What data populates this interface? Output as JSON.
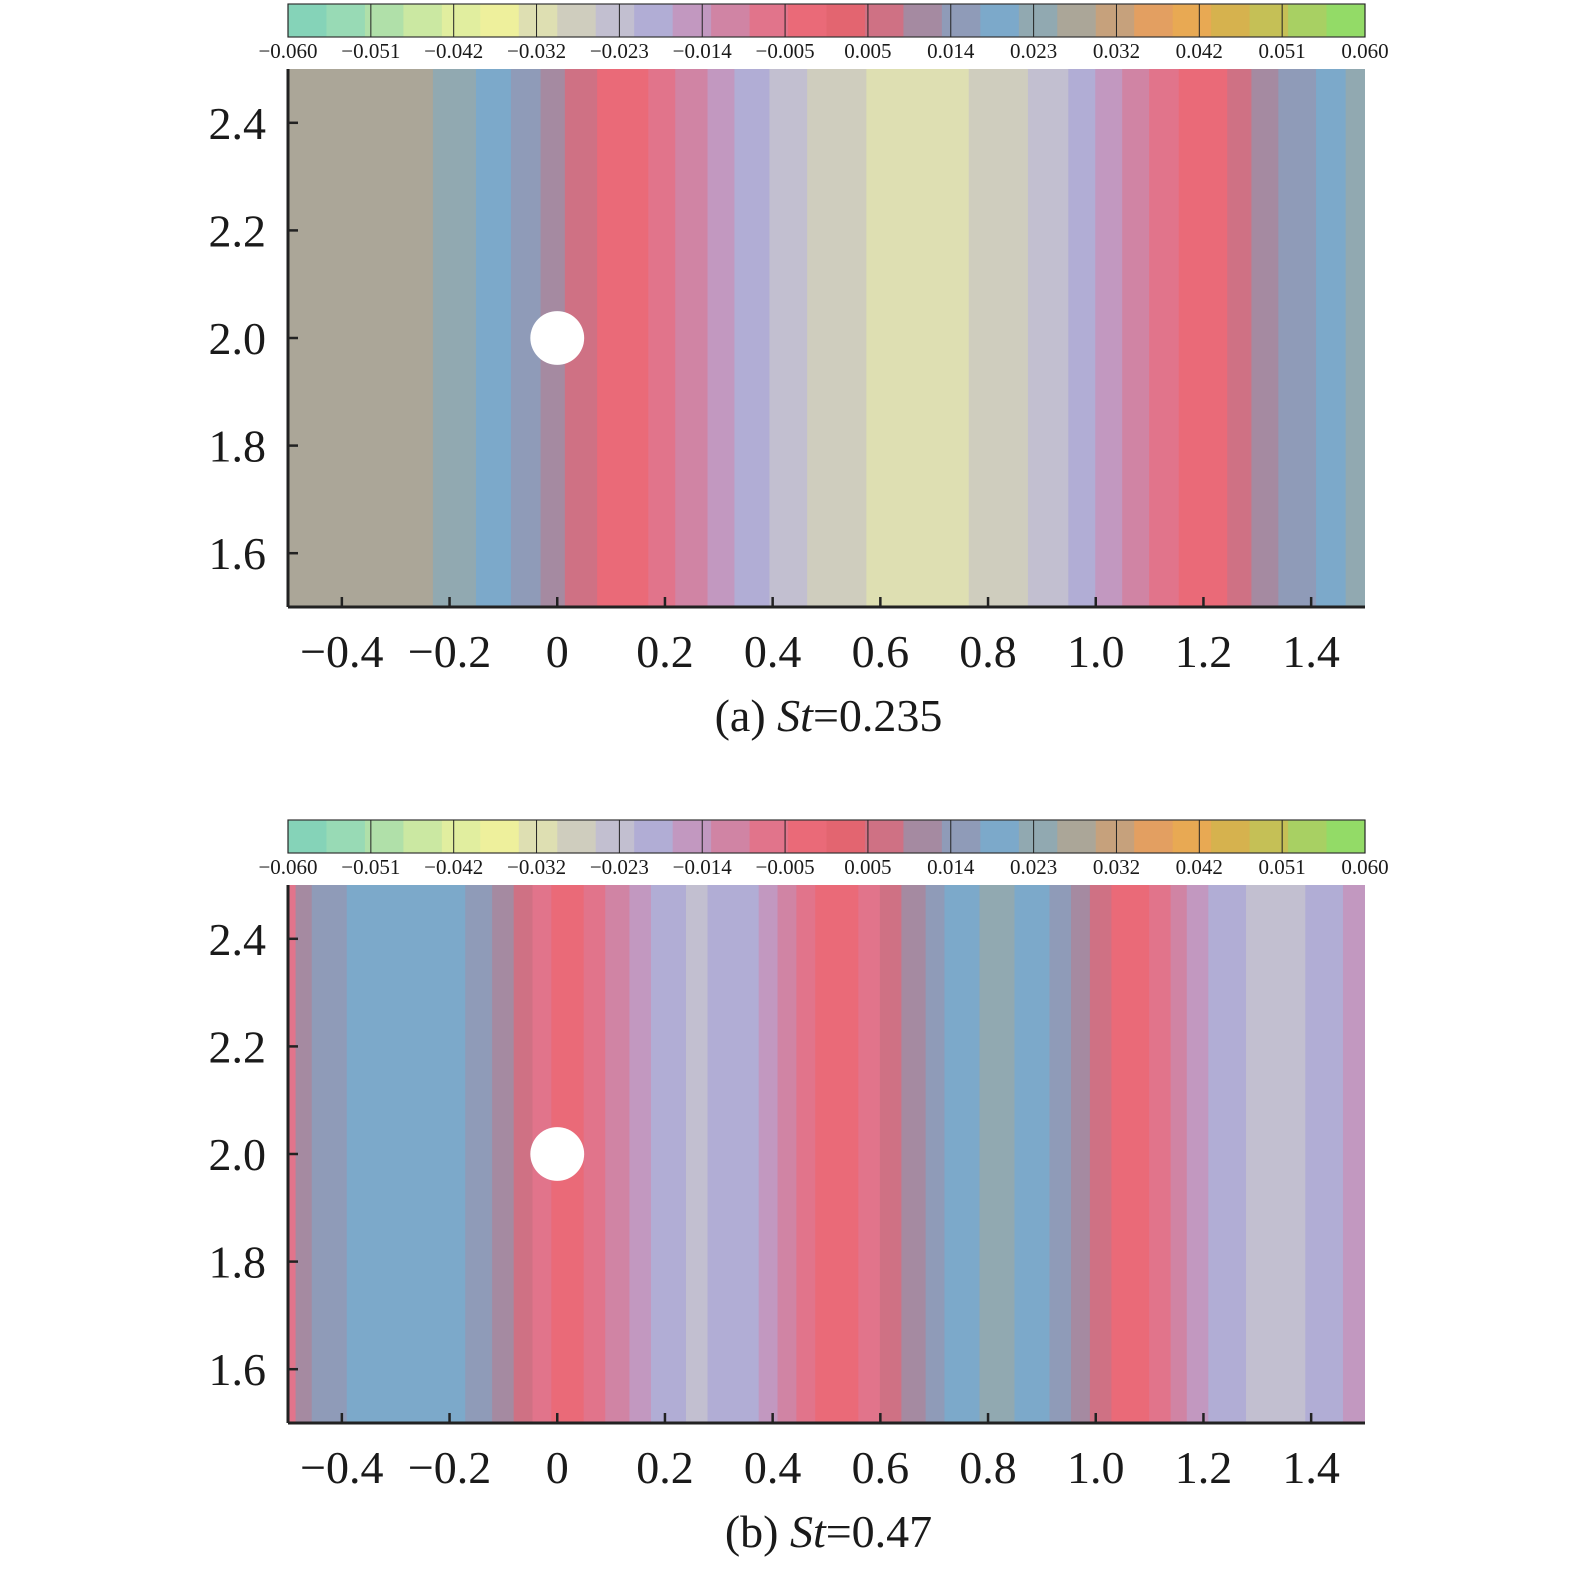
{
  "colorbar": {
    "colors": [
      "#85d3b8",
      "#98dab5",
      "#b0e0a9",
      "#cbe8a2",
      "#e1ee9f",
      "#eef09c",
      "#dedfb2",
      "#cfcdbe",
      "#c2bfd0",
      "#b1add5",
      "#c298c0",
      "#d084a4",
      "#e1748b",
      "#ea6a78",
      "#e36570",
      "#cf7184",
      "#a58aa1",
      "#8f9bb8",
      "#7ca9ca",
      "#91a9b1",
      "#aba698",
      "#c6a17c",
      "#e39f61",
      "#e8a953",
      "#d6b24e",
      "#c5c056",
      "#a8d063",
      "#93db67"
    ],
    "tick_labels": [
      "−0.060",
      "−0.051",
      "−0.042",
      "−0.032",
      "−0.023",
      "−0.014",
      "−0.005",
      "0.005",
      "0.014",
      "0.023",
      "0.032",
      "0.042",
      "0.051",
      "0.060"
    ]
  },
  "chart_data": [
    {
      "type": "heatmap",
      "caption_prefix": "(a) ",
      "caption_var": "St",
      "caption_value": "=0.235",
      "xlim": [
        -0.5,
        1.5
      ],
      "ylim": [
        1.5,
        2.5
      ],
      "x_ticks": [
        -0.4,
        -0.2,
        0,
        0.2,
        0.4,
        0.6,
        0.8,
        1.0,
        1.2,
        1.4
      ],
      "x_tick_labels": [
        "−0.4",
        "−0.2",
        "0",
        "0.2",
        "0.4",
        "0.6",
        "0.8",
        "1.0",
        "1.2",
        "1.4"
      ],
      "y_ticks": [
        1.6,
        1.8,
        2.0,
        2.2,
        2.4
      ],
      "y_tick_labels": [
        "1.6",
        "1.8",
        "2.0",
        "2.2",
        "2.4"
      ],
      "cylinder": {
        "x": 0,
        "y": 2.0,
        "radius": 0.05
      },
      "bands": [
        {
          "x0": -0.5,
          "x1": -0.23,
          "color": "#aba698"
        },
        {
          "x0": -0.23,
          "x1": -0.15,
          "color": "#91a9b1"
        },
        {
          "x0": -0.15,
          "x1": -0.085,
          "color": "#7ca9ca"
        },
        {
          "x0": -0.085,
          "x1": -0.03,
          "color": "#8f9bb8"
        },
        {
          "x0": -0.03,
          "x1": 0.015,
          "color": "#a58aa1"
        },
        {
          "x0": 0.015,
          "x1": 0.075,
          "color": "#cf7184"
        },
        {
          "x0": 0.075,
          "x1": 0.17,
          "color": "#ea6a78"
        },
        {
          "x0": 0.17,
          "x1": 0.22,
          "color": "#e1748b"
        },
        {
          "x0": 0.22,
          "x1": 0.28,
          "color": "#d084a4"
        },
        {
          "x0": 0.28,
          "x1": 0.33,
          "color": "#c298c0"
        },
        {
          "x0": 0.33,
          "x1": 0.395,
          "color": "#b1add5"
        },
        {
          "x0": 0.395,
          "x1": 0.465,
          "color": "#c2bfd0"
        },
        {
          "x0": 0.465,
          "x1": 0.575,
          "color": "#cfcdbe"
        },
        {
          "x0": 0.575,
          "x1": 0.765,
          "color": "#dedfb2"
        },
        {
          "x0": 0.765,
          "x1": 0.875,
          "color": "#cfcdbe"
        },
        {
          "x0": 0.875,
          "x1": 0.95,
          "color": "#c2bfd0"
        },
        {
          "x0": 0.95,
          "x1": 1.0,
          "color": "#b1add5"
        },
        {
          "x0": 1.0,
          "x1": 1.05,
          "color": "#c298c0"
        },
        {
          "x0": 1.05,
          "x1": 1.1,
          "color": "#d084a4"
        },
        {
          "x0": 1.1,
          "x1": 1.155,
          "color": "#e1748b"
        },
        {
          "x0": 1.155,
          "x1": 1.245,
          "color": "#ea6a78"
        },
        {
          "x0": 1.245,
          "x1": 1.29,
          "color": "#cf7184"
        },
        {
          "x0": 1.29,
          "x1": 1.34,
          "color": "#a58aa1"
        },
        {
          "x0": 1.34,
          "x1": 1.41,
          "color": "#8f9bb8"
        },
        {
          "x0": 1.41,
          "x1": 1.465,
          "color": "#7ca9ca"
        },
        {
          "x0": 1.465,
          "x1": 1.5,
          "color": "#91a9b1"
        }
      ]
    },
    {
      "type": "heatmap",
      "caption_prefix": "(b) ",
      "caption_var": "St",
      "caption_value": "=0.47",
      "xlim": [
        -0.5,
        1.5
      ],
      "ylim": [
        1.5,
        2.5
      ],
      "x_ticks": [
        -0.4,
        -0.2,
        0,
        0.2,
        0.4,
        0.6,
        0.8,
        1.0,
        1.2,
        1.4
      ],
      "x_tick_labels": [
        "−0.4",
        "−0.2",
        "0",
        "0.2",
        "0.4",
        "0.6",
        "0.8",
        "1.0",
        "1.2",
        "1.4"
      ],
      "y_ticks": [
        1.6,
        1.8,
        2.0,
        2.2,
        2.4
      ],
      "y_tick_labels": [
        "1.6",
        "1.8",
        "2.0",
        "2.2",
        "2.4"
      ],
      "cylinder": {
        "x": 0,
        "y": 2.0,
        "radius": 0.05
      },
      "bands": [
        {
          "x0": -0.5,
          "x1": -0.485,
          "color": "#e1748b"
        },
        {
          "x0": -0.485,
          "x1": -0.455,
          "color": "#a58aa1"
        },
        {
          "x0": -0.455,
          "x1": -0.39,
          "color": "#8f9bb8"
        },
        {
          "x0": -0.39,
          "x1": -0.17,
          "color": "#7ca9ca"
        },
        {
          "x0": -0.17,
          "x1": -0.12,
          "color": "#8f9bb8"
        },
        {
          "x0": -0.12,
          "x1": -0.08,
          "color": "#a58aa1"
        },
        {
          "x0": -0.08,
          "x1": -0.045,
          "color": "#cf7184"
        },
        {
          "x0": -0.045,
          "x1": -0.01,
          "color": "#e1748b"
        },
        {
          "x0": -0.01,
          "x1": 0.05,
          "color": "#ea6a78"
        },
        {
          "x0": 0.05,
          "x1": 0.09,
          "color": "#e1748b"
        },
        {
          "x0": 0.09,
          "x1": 0.135,
          "color": "#d084a4"
        },
        {
          "x0": 0.135,
          "x1": 0.175,
          "color": "#c298c0"
        },
        {
          "x0": 0.175,
          "x1": 0.24,
          "color": "#b1add5"
        },
        {
          "x0": 0.24,
          "x1": 0.28,
          "color": "#c2bfd0"
        },
        {
          "x0": 0.28,
          "x1": 0.375,
          "color": "#b1add5"
        },
        {
          "x0": 0.375,
          "x1": 0.41,
          "color": "#c298c0"
        },
        {
          "x0": 0.41,
          "x1": 0.445,
          "color": "#d084a4"
        },
        {
          "x0": 0.445,
          "x1": 0.48,
          "color": "#e1748b"
        },
        {
          "x0": 0.48,
          "x1": 0.56,
          "color": "#ea6a78"
        },
        {
          "x0": 0.56,
          "x1": 0.6,
          "color": "#e1748b"
        },
        {
          "x0": 0.6,
          "x1": 0.64,
          "color": "#cf7184"
        },
        {
          "x0": 0.64,
          "x1": 0.685,
          "color": "#a58aa1"
        },
        {
          "x0": 0.685,
          "x1": 0.72,
          "color": "#8f9bb8"
        },
        {
          "x0": 0.72,
          "x1": 0.785,
          "color": "#7ca9ca"
        },
        {
          "x0": 0.785,
          "x1": 0.85,
          "color": "#91a9b1"
        },
        {
          "x0": 0.85,
          "x1": 0.915,
          "color": "#7ca9ca"
        },
        {
          "x0": 0.915,
          "x1": 0.955,
          "color": "#8f9bb8"
        },
        {
          "x0": 0.955,
          "x1": 0.99,
          "color": "#a58aa1"
        },
        {
          "x0": 0.99,
          "x1": 1.03,
          "color": "#cf7184"
        },
        {
          "x0": 1.03,
          "x1": 1.1,
          "color": "#ea6a78"
        },
        {
          "x0": 1.1,
          "x1": 1.14,
          "color": "#e1748b"
        },
        {
          "x0": 1.14,
          "x1": 1.17,
          "color": "#d084a4"
        },
        {
          "x0": 1.17,
          "x1": 1.21,
          "color": "#c298c0"
        },
        {
          "x0": 1.21,
          "x1": 1.28,
          "color": "#b1add5"
        },
        {
          "x0": 1.28,
          "x1": 1.39,
          "color": "#c2bfd0"
        },
        {
          "x0": 1.39,
          "x1": 1.46,
          "color": "#b1add5"
        },
        {
          "x0": 1.46,
          "x1": 1.5,
          "color": "#c298c0"
        }
      ]
    }
  ]
}
